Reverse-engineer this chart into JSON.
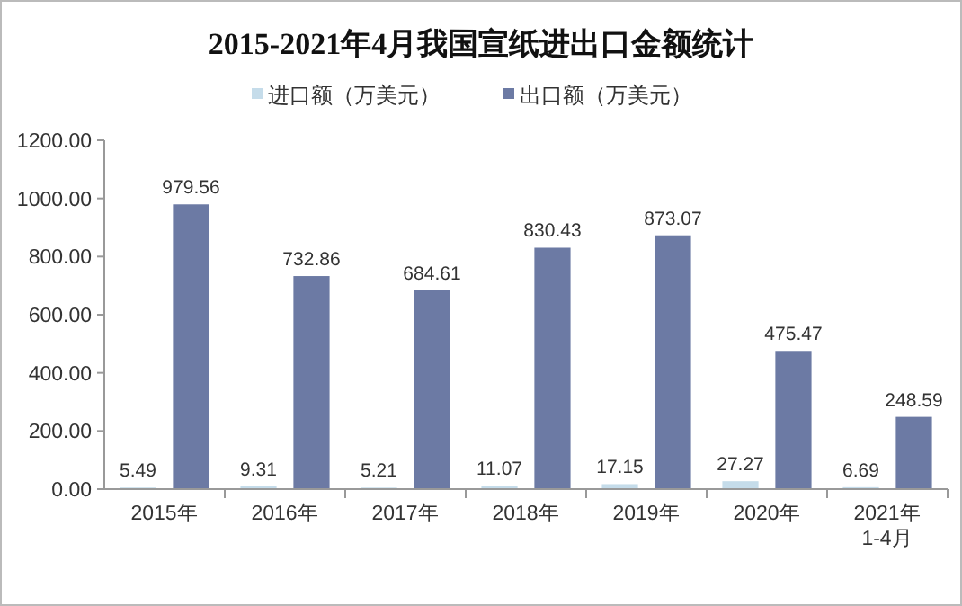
{
  "chart_data": {
    "type": "bar",
    "title": "2015-2021年4月我国宣纸进出口金额统计",
    "categories": [
      "2015年",
      "2016年",
      "2017年",
      "2018年",
      "2019年",
      "2020年",
      "2021年\n1-4月"
    ],
    "series": [
      {
        "name": "进口额（万美元）",
        "color": "#c5dcea",
        "values": [
          5.49,
          9.31,
          5.21,
          11.07,
          17.15,
          27.27,
          6.69
        ]
      },
      {
        "name": "出口额（万美元）",
        "color": "#6c7aa4",
        "values": [
          979.56,
          732.86,
          684.61,
          830.43,
          873.07,
          475.47,
          248.59
        ]
      }
    ],
    "ylim": [
      0,
      1200
    ],
    "yticks": [
      {
        "value": 0,
        "label": "0.00"
      },
      {
        "value": 200,
        "label": "200.00"
      },
      {
        "value": 400,
        "label": "400.00"
      },
      {
        "value": 600,
        "label": "600.00"
      },
      {
        "value": 800,
        "label": "800.00"
      },
      {
        "value": 1000,
        "label": "1000.00"
      },
      {
        "value": 1200,
        "label": "1200.00"
      }
    ],
    "data_labels": true,
    "legend": "top",
    "grid": false
  }
}
